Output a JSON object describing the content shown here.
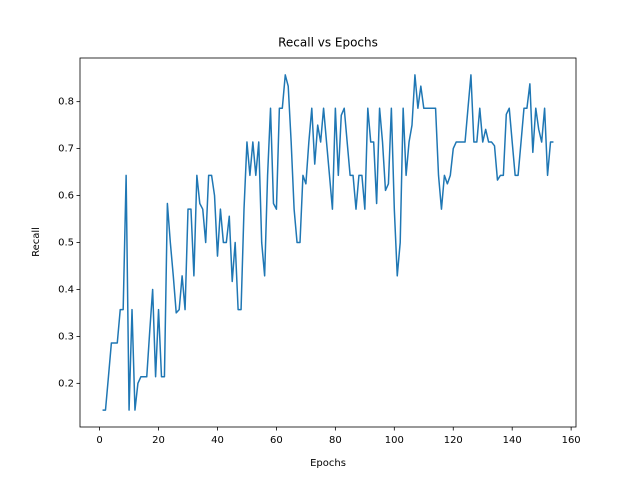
{
  "chart_data": {
    "type": "line",
    "title": "Recall vs Epochs",
    "x_label": "Epochs",
    "y_label": "Recall",
    "x": [
      1,
      2,
      3,
      4,
      5,
      6,
      7,
      8,
      9,
      10,
      11,
      12,
      13,
      14,
      15,
      16,
      17,
      18,
      19,
      20,
      21,
      22,
      23,
      24,
      25,
      26,
      27,
      28,
      29,
      30,
      31,
      32,
      33,
      34,
      35,
      36,
      37,
      38,
      39,
      40,
      41,
      42,
      43,
      44,
      45,
      46,
      47,
      48,
      49,
      50,
      51,
      52,
      53,
      54,
      55,
      56,
      57,
      58,
      59,
      60,
      61,
      62,
      63,
      64,
      65,
      66,
      67,
      68,
      69,
      70,
      71,
      72,
      73,
      74,
      75,
      76,
      77,
      78,
      79,
      80,
      81,
      82,
      83,
      84,
      85,
      86,
      87,
      88,
      89,
      90,
      91,
      92,
      93,
      94,
      95,
      96,
      97,
      98,
      99,
      100,
      101,
      102,
      103,
      104,
      105,
      106,
      107,
      108,
      109,
      110,
      111,
      112,
      113,
      114,
      115,
      116,
      117,
      118,
      119,
      120,
      121,
      122,
      123,
      124,
      125,
      126,
      127,
      128,
      129,
      130,
      131,
      132,
      133,
      134,
      135,
      136,
      137,
      138,
      139,
      140,
      141,
      142,
      143,
      144,
      145,
      146,
      147,
      148,
      149,
      150,
      151,
      152,
      153,
      154
    ],
    "series": [
      {
        "name": "Recall",
        "color": "#1f77b4",
        "values": [
          0.143,
          0.143,
          0.214,
          0.286,
          0.286,
          0.286,
          0.357,
          0.357,
          0.643,
          0.143,
          0.357,
          0.143,
          0.2,
          0.214,
          0.214,
          0.214,
          0.31,
          0.4,
          0.214,
          0.357,
          0.214,
          0.214,
          0.583,
          0.5,
          0.429,
          0.35,
          0.357,
          0.429,
          0.357,
          0.571,
          0.571,
          0.429,
          0.643,
          0.583,
          0.571,
          0.5,
          0.643,
          0.643,
          0.6,
          0.471,
          0.571,
          0.5,
          0.5,
          0.556,
          0.417,
          0.5,
          0.357,
          0.357,
          0.571,
          0.714,
          0.643,
          0.714,
          0.643,
          0.714,
          0.5,
          0.429,
          0.643,
          0.786,
          0.583,
          0.571,
          0.786,
          0.786,
          0.857,
          0.833,
          0.714,
          0.571,
          0.5,
          0.5,
          0.643,
          0.625,
          0.714,
          0.786,
          0.667,
          0.75,
          0.714,
          0.786,
          0.714,
          0.643,
          0.571,
          0.786,
          0.643,
          0.771,
          0.786,
          0.714,
          0.643,
          0.643,
          0.571,
          0.643,
          0.643,
          0.571,
          0.786,
          0.714,
          0.714,
          0.583,
          0.786,
          0.714,
          0.611,
          0.625,
          0.786,
          0.571,
          0.429,
          0.5,
          0.786,
          0.643,
          0.714,
          0.75,
          0.857,
          0.786,
          0.833,
          0.786,
          0.786,
          0.786,
          0.786,
          0.786,
          0.643,
          0.571,
          0.643,
          0.625,
          0.643,
          0.7,
          0.714,
          0.714,
          0.714,
          0.714,
          0.786,
          0.857,
          0.714,
          0.714,
          0.786,
          0.714,
          0.741,
          0.714,
          0.714,
          0.706,
          0.633,
          0.643,
          0.643,
          0.773,
          0.786,
          0.714,
          0.643,
          0.643,
          0.714,
          0.786,
          0.786,
          0.838,
          0.692,
          0.786,
          0.741,
          0.714,
          0.786,
          0.643,
          0.714,
          0.714
        ]
      }
    ],
    "xlim": [
      -6.65,
      161.65
    ],
    "xticks": [
      0,
      20,
      40,
      60,
      80,
      100,
      120,
      140,
      160
    ],
    "ylim": [
      0.107,
      0.893
    ],
    "yticks": [
      0.2,
      0.3,
      0.4,
      0.5,
      0.6,
      0.7,
      0.8
    ]
  }
}
